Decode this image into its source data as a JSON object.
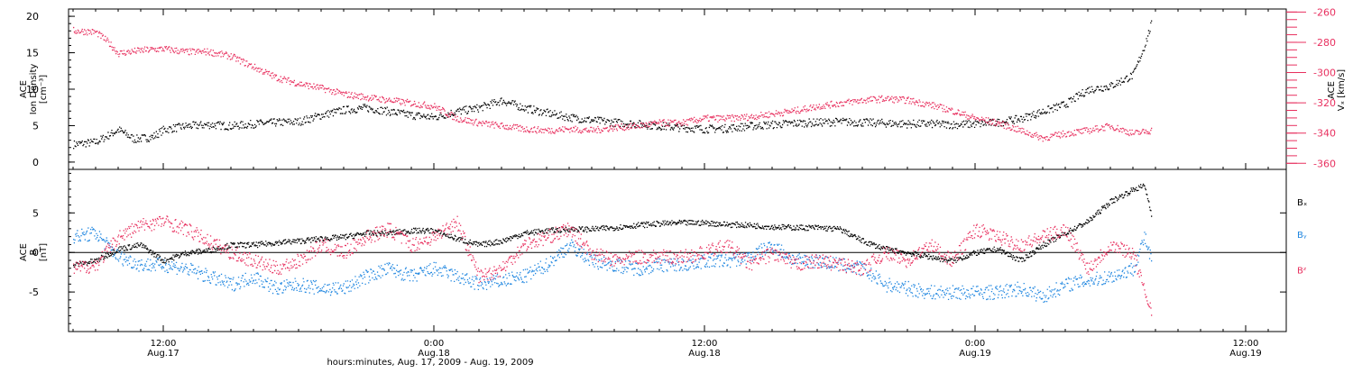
{
  "colors": {
    "density": "#000000",
    "vx": "#e8305f",
    "bx": "#000000",
    "by": "#1f86e0",
    "bz": "#e8305f",
    "axis": "#000000"
  },
  "xaxis": {
    "title": "hours:minutes, Aug. 17, 2009 - Aug. 19, 2009",
    "ticks": [
      {
        "hour": 12,
        "time": "12:00",
        "date": "Aug.17"
      },
      {
        "hour": 24,
        "time": "0:00",
        "date": "Aug.18"
      },
      {
        "hour": 36,
        "time": "12:00",
        "date": "Aug.18"
      },
      {
        "hour": 48,
        "time": "0:00",
        "date": "Aug.19"
      },
      {
        "hour": 60,
        "time": "12:00",
        "date": "Aug.19"
      }
    ],
    "range_hours": [
      7.8,
      61.8
    ],
    "data_end_hour": 55.8,
    "minor_tick_hours": 1
  },
  "chart_data": [
    {
      "type": "scatter",
      "panel": "top",
      "ylabel_left": [
        "ACE",
        "Ion Density",
        "[cm⁻³]"
      ],
      "ylabel_right": [
        "ACE",
        "Vₓ [km/s]"
      ],
      "ylim_left": [
        -1,
        21
      ],
      "yticks_left": [
        0,
        5,
        10,
        15,
        20
      ],
      "ylim_right": [
        -364,
        -258
      ],
      "yticks_right": [
        -260,
        -280,
        -300,
        -320,
        -340,
        -360
      ],
      "series": [
        {
          "key": "density",
          "axis": "left",
          "points": [
            [
              8,
              2.5
            ],
            [
              9,
              2.8
            ],
            [
              10,
              4.5
            ],
            [
              10.7,
              3.2
            ],
            [
              11.5,
              3.5
            ],
            [
              12,
              4.5
            ],
            [
              13,
              5
            ],
            [
              14,
              5.2
            ],
            [
              15,
              5
            ],
            [
              16,
              5.3
            ],
            [
              17,
              5.5
            ],
            [
              18,
              5.6
            ],
            [
              19,
              6.5
            ],
            [
              20,
              7.2
            ],
            [
              21,
              7.5
            ],
            [
              22,
              7
            ],
            [
              23,
              6.5
            ],
            [
              24,
              6.2
            ],
            [
              25,
              7
            ],
            [
              26,
              7.5
            ],
            [
              27,
              8.5
            ],
            [
              28,
              7.5
            ],
            [
              29,
              6.8
            ],
            [
              30,
              6.2
            ],
            [
              31,
              5.8
            ],
            [
              32,
              5.5
            ],
            [
              33,
              5.3
            ],
            [
              34,
              5
            ],
            [
              35,
              4.8
            ],
            [
              36,
              4.6
            ],
            [
              37,
              4.7
            ],
            [
              38,
              5
            ],
            [
              39,
              5.2
            ],
            [
              40,
              5.4
            ],
            [
              41,
              5.5
            ],
            [
              42,
              5.6
            ],
            [
              43,
              5.5
            ],
            [
              44,
              5.4
            ],
            [
              45,
              5.3
            ],
            [
              46,
              5.3
            ],
            [
              47,
              5.2
            ],
            [
              48,
              5.3
            ],
            [
              49,
              5.5
            ],
            [
              50,
              6
            ],
            [
              51,
              7
            ],
            [
              52,
              8
            ],
            [
              53,
              10
            ],
            [
              54,
              10.5
            ],
            [
              55,
              12
            ],
            [
              55.5,
              16
            ],
            [
              55.8,
              19
            ]
          ]
        },
        {
          "key": "vx",
          "axis": "right",
          "points": [
            [
              8,
              -272
            ],
            [
              9,
              -273
            ],
            [
              9.5,
              -279
            ],
            [
              10,
              -287
            ],
            [
              11,
              -285
            ],
            [
              12,
              -284
            ],
            [
              13,
              -286
            ],
            [
              14,
              -286
            ],
            [
              15,
              -289
            ],
            [
              16,
              -296
            ],
            [
              17,
              -303
            ],
            [
              18,
              -307
            ],
            [
              19,
              -310
            ],
            [
              20,
              -314
            ],
            [
              21,
              -316
            ],
            [
              22,
              -318
            ],
            [
              23,
              -320
            ],
            [
              24,
              -322
            ],
            [
              25,
              -330
            ],
            [
              26,
              -333
            ],
            [
              27,
              -335
            ],
            [
              28,
              -337
            ],
            [
              29,
              -338
            ],
            [
              30,
              -337
            ],
            [
              31,
              -338
            ],
            [
              32,
              -336
            ],
            [
              33,
              -335
            ],
            [
              34,
              -333
            ],
            [
              35,
              -333
            ],
            [
              36,
              -330
            ],
            [
              37,
              -330
            ],
            [
              38,
              -329
            ],
            [
              39,
              -327
            ],
            [
              40,
              -325
            ],
            [
              41,
              -322
            ],
            [
              42,
              -320
            ],
            [
              43,
              -318
            ],
            [
              44,
              -317
            ],
            [
              45,
              -318
            ],
            [
              46,
              -321
            ],
            [
              47,
              -325
            ],
            [
              48,
              -330
            ],
            [
              49,
              -333
            ],
            [
              50,
              -338
            ],
            [
              51,
              -343
            ],
            [
              52,
              -340
            ],
            [
              53,
              -338
            ],
            [
              54,
              -335
            ],
            [
              55,
              -340
            ],
            [
              55.8,
              -338
            ]
          ]
        }
      ]
    },
    {
      "type": "scatter",
      "panel": "bottom",
      "ylabel_left": [
        "ACE",
        "B",
        "[nT]"
      ],
      "ylim": [
        -10,
        10.5
      ],
      "yticks": [
        -5,
        0,
        5
      ],
      "zero_line": true,
      "series": [
        {
          "key": "bx",
          "name": "Bₓ",
          "label_y": 6.4,
          "points": [
            [
              8,
              -1.5
            ],
            [
              9,
              -1
            ],
            [
              10,
              0.5
            ],
            [
              11,
              1
            ],
            [
              12,
              -1
            ],
            [
              13,
              0
            ],
            [
              14,
              0.3
            ],
            [
              15,
              1
            ],
            [
              16,
              1
            ],
            [
              17,
              1.3
            ],
            [
              18,
              1.5
            ],
            [
              19,
              1.8
            ],
            [
              20,
              2
            ],
            [
              21,
              2.5
            ],
            [
              22,
              2.5
            ],
            [
              23,
              2.8
            ],
            [
              24,
              2.8
            ],
            [
              25,
              1.8
            ],
            [
              26,
              1
            ],
            [
              27,
              1.5
            ],
            [
              28,
              2.5
            ],
            [
              29,
              2.8
            ],
            [
              30,
              3
            ],
            [
              31,
              3
            ],
            [
              32,
              3.2
            ],
            [
              33,
              3.5
            ],
            [
              34,
              3.7
            ],
            [
              35,
              3.8
            ],
            [
              36,
              3.8
            ],
            [
              37,
              3.6
            ],
            [
              38,
              3.5
            ],
            [
              39,
              3.3
            ],
            [
              40,
              3.2
            ],
            [
              41,
              3.2
            ],
            [
              42,
              3
            ],
            [
              43,
              1.5
            ],
            [
              44,
              0.5
            ],
            [
              45,
              0
            ],
            [
              46,
              -0.5
            ],
            [
              47,
              -1
            ],
            [
              48,
              0
            ],
            [
              49,
              0.5
            ],
            [
              50,
              -1
            ],
            [
              51,
              1
            ],
            [
              52,
              2.5
            ],
            [
              53,
              4
            ],
            [
              54,
              6.5
            ],
            [
              55,
              8
            ],
            [
              55.5,
              8.5
            ],
            [
              55.8,
              5
            ]
          ]
        },
        {
          "key": "by",
          "name": "Bᵧ",
          "label_y": 2.3,
          "points": [
            [
              8,
              2
            ],
            [
              9,
              2.5
            ],
            [
              10,
              -0.5
            ],
            [
              11,
              -1.5
            ],
            [
              12,
              -1.5
            ],
            [
              13,
              -2
            ],
            [
              14,
              -3
            ],
            [
              15,
              -4
            ],
            [
              16,
              -3
            ],
            [
              17,
              -4.5
            ],
            [
              18,
              -4
            ],
            [
              19,
              -4.5
            ],
            [
              20,
              -4.5
            ],
            [
              21,
              -3
            ],
            [
              22,
              -2
            ],
            [
              23,
              -3
            ],
            [
              24,
              -2
            ],
            [
              25,
              -3
            ],
            [
              26,
              -4
            ],
            [
              27,
              -3.5
            ],
            [
              28,
              -3
            ],
            [
              29,
              -1.5
            ],
            [
              30,
              1
            ],
            [
              31,
              -1
            ],
            [
              32,
              -1.5
            ],
            [
              33,
              -2
            ],
            [
              34,
              -1.5
            ],
            [
              35,
              -1.5
            ],
            [
              36,
              -1
            ],
            [
              37,
              -1
            ],
            [
              38,
              -0.5
            ],
            [
              39,
              1
            ],
            [
              40,
              -1
            ],
            [
              41,
              -1
            ],
            [
              42,
              -1.5
            ],
            [
              43,
              -2
            ],
            [
              44,
              -4
            ],
            [
              45,
              -4.5
            ],
            [
              46,
              -5
            ],
            [
              47,
              -5
            ],
            [
              48,
              -5
            ],
            [
              49,
              -5
            ],
            [
              50,
              -4.5
            ],
            [
              51,
              -5.5
            ],
            [
              52,
              -4
            ],
            [
              53,
              -3.5
            ],
            [
              54,
              -3
            ],
            [
              55,
              -2
            ],
            [
              55.5,
              2
            ],
            [
              55.8,
              -1
            ]
          ]
        },
        {
          "key": "bz",
          "name": "Bᶻ",
          "label_y": -2.2,
          "points": [
            [
              8,
              -2
            ],
            [
              9,
              -1.5
            ],
            [
              10,
              2
            ],
            [
              11,
              3.5
            ],
            [
              12,
              4
            ],
            [
              13,
              3
            ],
            [
              14,
              1.5
            ],
            [
              15,
              0
            ],
            [
              16,
              -1
            ],
            [
              17,
              -2
            ],
            [
              18,
              -1
            ],
            [
              19,
              1
            ],
            [
              20,
              0
            ],
            [
              21,
              2
            ],
            [
              22,
              3
            ],
            [
              23,
              1
            ],
            [
              24,
              2
            ],
            [
              25,
              4
            ],
            [
              26,
              -3
            ],
            [
              27,
              -2
            ],
            [
              28,
              1
            ],
            [
              29,
              2
            ],
            [
              30,
              3
            ],
            [
              31,
              0
            ],
            [
              32,
              -1
            ],
            [
              33,
              -0.5
            ],
            [
              34,
              -0.5
            ],
            [
              35,
              -0.5
            ],
            [
              36,
              0
            ],
            [
              37,
              1
            ],
            [
              38,
              -1.5
            ],
            [
              39,
              0
            ],
            [
              40,
              -1.5
            ],
            [
              41,
              -1
            ],
            [
              42,
              -1.5
            ],
            [
              43,
              -2
            ],
            [
              44,
              0
            ],
            [
              45,
              -1
            ],
            [
              46,
              1
            ],
            [
              47,
              -1
            ],
            [
              48,
              3
            ],
            [
              49,
              2
            ],
            [
              50,
              1
            ],
            [
              51,
              2
            ],
            [
              52,
              3
            ],
            [
              53,
              -2
            ],
            [
              54,
              1
            ],
            [
              55,
              0
            ],
            [
              55.5,
              -5
            ],
            [
              55.8,
              -7
            ]
          ]
        }
      ]
    }
  ]
}
